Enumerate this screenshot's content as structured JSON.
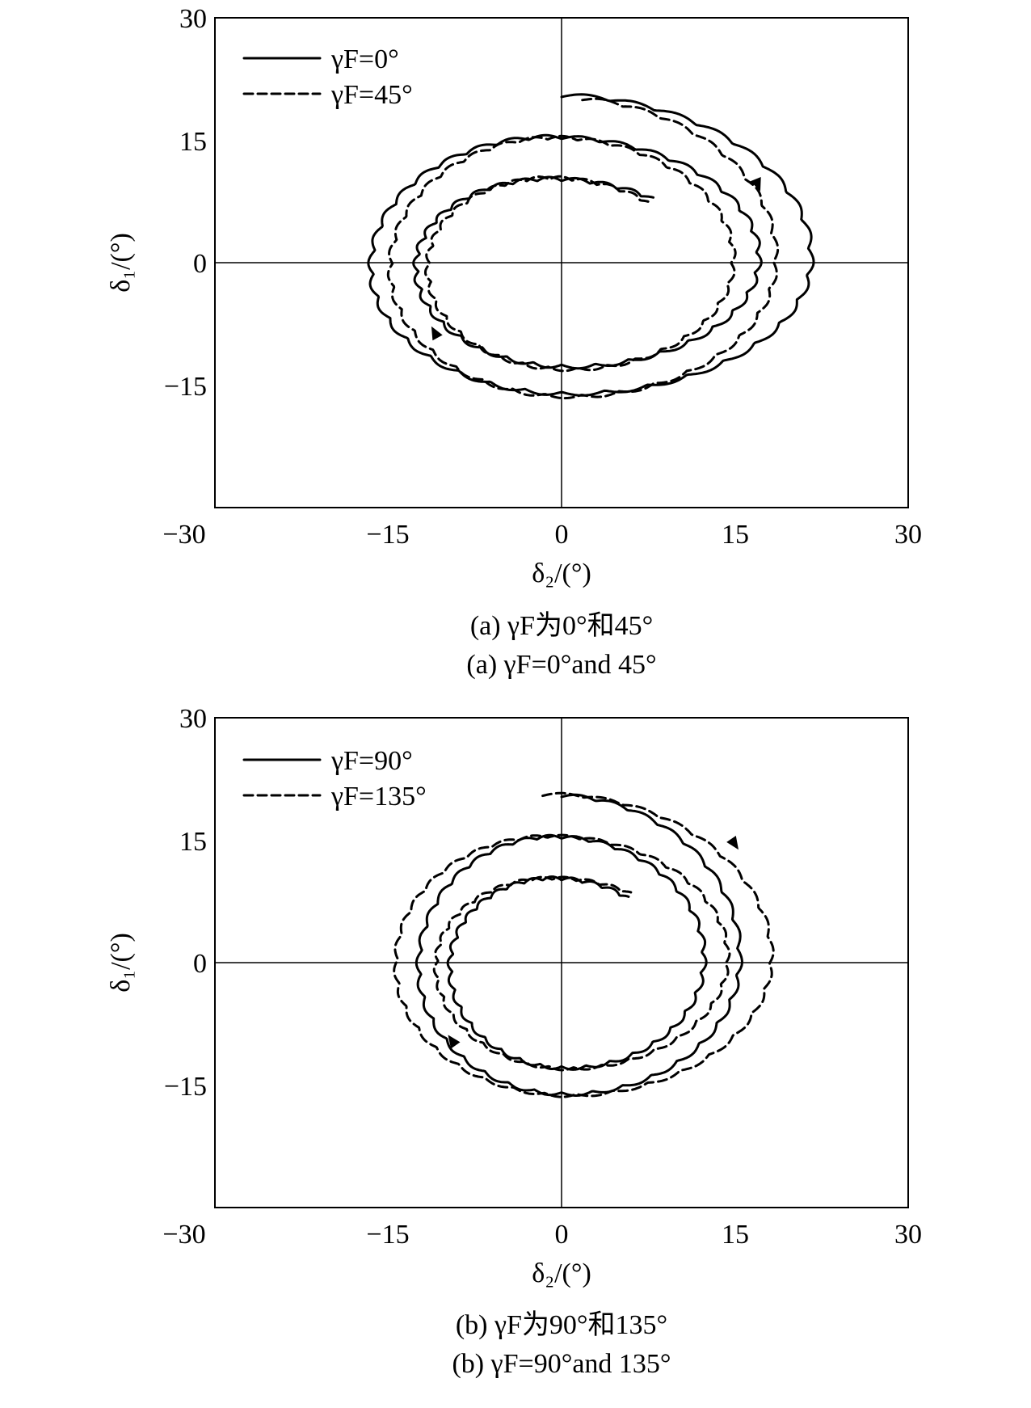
{
  "chart_data": [
    {
      "type": "line",
      "title": "",
      "xlabel": "δ₂/(°)",
      "ylabel": "δ₁/(°)",
      "xlim": [
        -30,
        30
      ],
      "ylim": [
        -30,
        30
      ],
      "xticks": [
        "−30",
        "−15",
        "0",
        "15",
        "30"
      ],
      "yticks": [
        "30",
        "15",
        "0",
        "−15"
      ],
      "ytick_values": [
        30,
        15,
        0,
        -15
      ],
      "xtick_values": [
        -30,
        -15,
        0,
        15,
        30
      ],
      "grid": false,
      "zero_lines": true,
      "legend_placement": "top-left",
      "caption_cn": "(a) γF为0°和45°",
      "caption_en": "(a) γF=0°and 45°",
      "series": [
        {
          "name": "γF=0°",
          "style": "solid",
          "spiral": {
            "x_start": 0,
            "y_start": 20.3,
            "x_end": 0,
            "y_end": 9.5,
            "turns": 2.1,
            "x_pos_start": 22.5,
            "x_pos_end": 13.0,
            "x_neg_start": -19.2,
            "x_neg_end": -11.0,
            "y_neg_start": -17.5,
            "y_neg_end": -10.5,
            "tilt": 0.0,
            "ripple": 0.45
          }
        },
        {
          "name": "γF=45°",
          "style": "dashed",
          "spiral": {
            "x_start": 0,
            "y_start": 20.0,
            "x_end": 0,
            "y_end": 9.6,
            "turns": 2.1,
            "x_pos_start": 19.2,
            "x_pos_end": 11.5,
            "x_neg_start": -17.0,
            "x_neg_end": -10.2,
            "y_neg_start": -17.8,
            "y_neg_end": -10.8,
            "tilt": -0.09,
            "ripple": 0.4
          }
        }
      ],
      "arrows": [
        {
          "series": "γF=0°",
          "x": 17.0,
          "y": 9.5,
          "direction": "clockwise"
        },
        {
          "series": "γF=0°",
          "x": -11.0,
          "y": -8.5,
          "direction": "clockwise"
        }
      ]
    },
    {
      "type": "line",
      "title": "",
      "xlabel": "δ₂/(°)",
      "ylabel": "δ₁/(°)",
      "xlim": [
        -30,
        30
      ],
      "ylim": [
        -30,
        30
      ],
      "xticks": [
        "−30",
        "−15",
        "0",
        "15",
        "30"
      ],
      "yticks": [
        "30",
        "15",
        "0",
        "−15"
      ],
      "ytick_values": [
        30,
        15,
        0,
        -15
      ],
      "xtick_values": [
        -30,
        -15,
        0,
        15,
        30
      ],
      "grid": false,
      "zero_lines": true,
      "legend_placement": "top-left",
      "caption_cn": "(b) γF为90°和135°",
      "caption_en": "(b) γF=90°and 135°",
      "series": [
        {
          "name": "γF=90°",
          "style": "solid",
          "spiral": {
            "x_start": 0,
            "y_start": 20.3,
            "x_end": 1.2,
            "y_end": 9.6,
            "turns": 2.1,
            "x_pos_start": 16.0,
            "x_pos_end": 9.5,
            "x_neg_start": -14.2,
            "x_neg_end": -8.5,
            "y_neg_start": -17.5,
            "y_neg_end": -10.8,
            "tilt": 0.0,
            "ripple": 0.4
          }
        },
        {
          "name": "γF=135°",
          "style": "dashed",
          "spiral": {
            "x_start": 0,
            "y_start": 20.5,
            "x_end": 1.0,
            "y_end": 9.7,
            "turns": 2.1,
            "x_pos_start": 19.0,
            "x_pos_end": 11.0,
            "x_neg_start": -16.8,
            "x_neg_end": -9.5,
            "y_neg_start": -17.8,
            "y_neg_end": -10.9,
            "tilt": 0.08,
            "ripple": 0.35
          }
        }
      ],
      "arrows": [
        {
          "series": "γF=135°",
          "x": 15.0,
          "y": 14.5,
          "direction": "clockwise"
        },
        {
          "series": "γF=135°",
          "x": -9.5,
          "y": -9.5,
          "direction": "clockwise"
        }
      ]
    }
  ]
}
